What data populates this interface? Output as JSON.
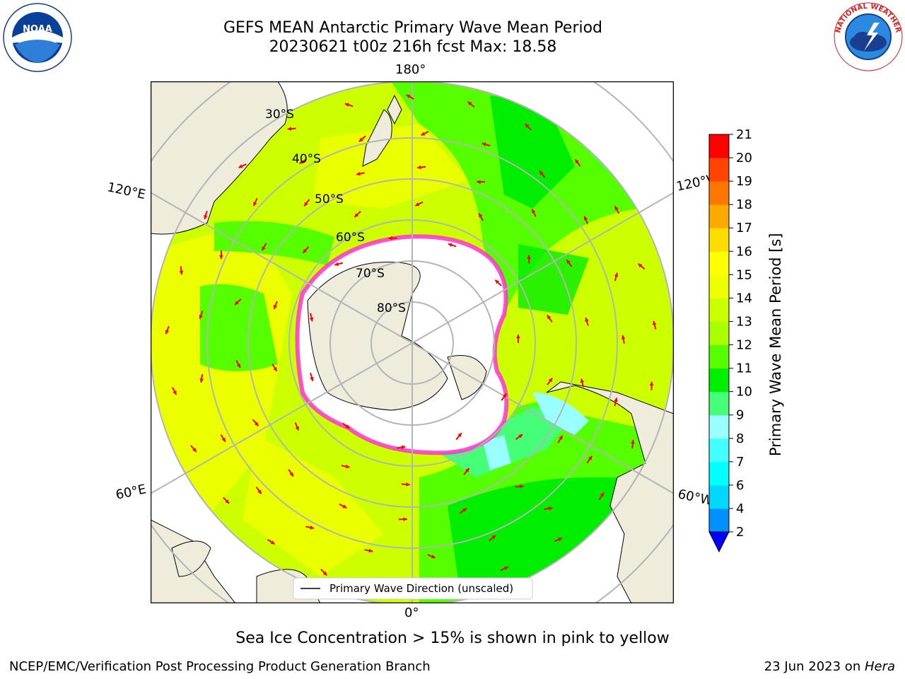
{
  "title": {
    "line1": "GEFS MEAN Antarctic Primary Wave Mean Period",
    "line2": "20230621 t00z 216h fcst   Max: 18.58"
  },
  "logos": {
    "noaa": {
      "icon": "noaa-logo-icon",
      "text": "NOAA"
    },
    "nws": {
      "icon": "nws-logo-icon",
      "text": "NATIONAL WEATHER SERVICE"
    }
  },
  "map": {
    "projection": "south-polar-stereographic",
    "longitude_labels": {
      "top": "180°",
      "bottom": "0°",
      "upper_left": "120°E",
      "upper_right": "120°W",
      "lower_left": "60°E",
      "lower_right": "60°W"
    },
    "latitude_labels": [
      "30°S",
      "40°S",
      "50°S",
      "60°S",
      "70°S",
      "80°S"
    ],
    "legend": "Primary Wave Direction (unscaled)",
    "colors": {
      "land": "#efecdc",
      "ice_shelf": "#ffffff",
      "graticule": "#b4b4b4",
      "arrow": "#ff0000",
      "sea_ice_edge": "#ff33cc"
    }
  },
  "colorbar": {
    "label": "Primary Wave Mean Period [s]",
    "ticks": [
      "2",
      "4",
      "6",
      "7",
      "8",
      "9",
      "10",
      "11",
      "12",
      "13",
      "14",
      "15",
      "16",
      "17",
      "18",
      "19",
      "20",
      "21"
    ],
    "colors": [
      "#0044ff",
      "#0090ff",
      "#00d8ff",
      "#00ffff",
      "#44ffff",
      "#99ffff",
      "#44ff77",
      "#00ee00",
      "#55ff00",
      "#aaff00",
      "#ccff00",
      "#eeff00",
      "#ffff00",
      "#ffdd00",
      "#ffaa00",
      "#ff7700",
      "#ff4400",
      "#ff0000"
    ],
    "extend_min_color": "#0000ff"
  },
  "ice_note": "Sea Ice Concentration > 15% is shown in pink to yellow",
  "footer": {
    "left": "NCEP/EMC/Verification Post Processing Product Generation Branch",
    "right_date": "23 Jun 2023 on ",
    "right_machine": "Hera"
  }
}
